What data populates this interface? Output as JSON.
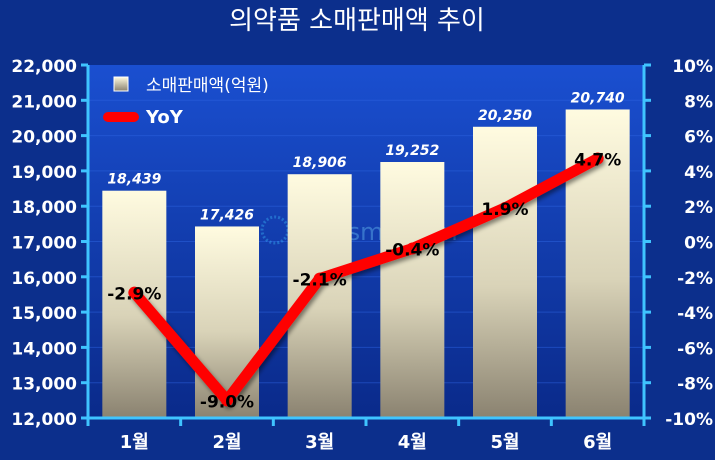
{
  "chart_data": {
    "type": "bar",
    "title": "의약품 소매판매액 추이",
    "categories": [
      "1월",
      "2월",
      "3월",
      "4월",
      "5월",
      "6월"
    ],
    "series": [
      {
        "name": "소매판매액(억원)",
        "type": "bar",
        "axis": "left",
        "values": [
          18439,
          17426,
          18906,
          19252,
          20250,
          20740
        ],
        "labels": [
          "18,439",
          "17,426",
          "18,906",
          "19,252",
          "20,250",
          "20,740"
        ]
      },
      {
        "name": "YoY",
        "type": "line",
        "axis": "right",
        "values": [
          -2.9,
          -9.0,
          -2.1,
          -0.4,
          1.9,
          4.7
        ],
        "labels": [
          "-2.9%",
          "-9.0%",
          "-2.1%",
          "-0.4%",
          "1.9%",
          "4.7%"
        ]
      }
    ],
    "y_left": {
      "ylim": [
        12000,
        22000
      ],
      "ticks": [
        "12,000",
        "13,000",
        "14,000",
        "15,000",
        "16,000",
        "17,000",
        "18,000",
        "19,000",
        "20,000",
        "21,000",
        "22,000"
      ]
    },
    "y_right": {
      "ylim": [
        -10,
        10
      ],
      "ticks": [
        "-10%",
        "-8%",
        "-6%",
        "-4%",
        "-2%",
        "0%",
        "2%",
        "4%",
        "6%",
        "8%",
        "10%"
      ]
    },
    "legend": "top-left",
    "watermark": "newsmp.com",
    "colors": {
      "background": "#0c2f8c",
      "plot_top": "#1a4fd0",
      "plot_bottom": "#0a2a8a",
      "axis": "#3fc4ff",
      "bar_top": "#fffbe0",
      "bar_bottom": "#8a8270",
      "line": "#ff0000",
      "tick_text": "#ffffff",
      "bar_label": "#ffffff",
      "line_label": "#000000"
    }
  }
}
